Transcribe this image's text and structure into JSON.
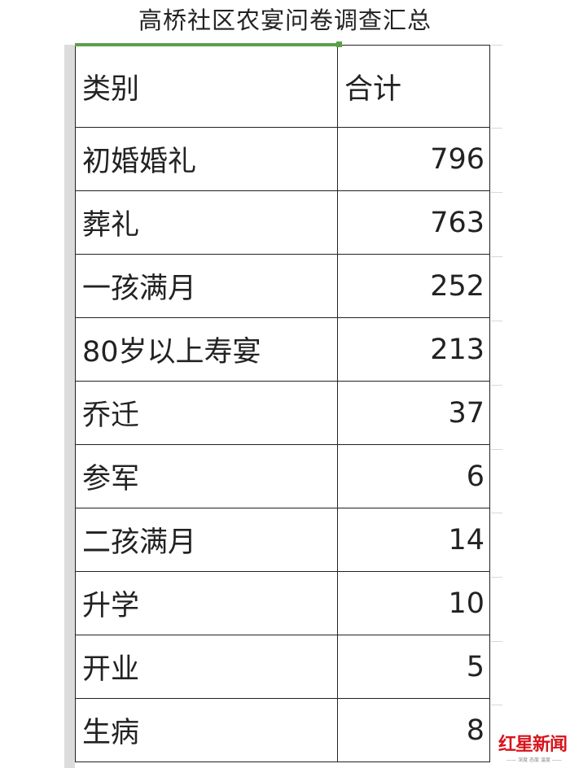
{
  "title": "高桥社区农宴问卷调查汇总",
  "table": {
    "headers": [
      "类别",
      "合计"
    ],
    "rows": [
      {
        "category": "初婚婚礼",
        "total": "796"
      },
      {
        "category": "葬礼",
        "total": "763"
      },
      {
        "category": "一孩满月",
        "total": "252"
      },
      {
        "category": "80岁以上寿宴",
        "total": "213"
      },
      {
        "category": "乔迁",
        "total": "37"
      },
      {
        "category": "参军",
        "total": "6"
      },
      {
        "category": "二孩满月",
        "total": "14"
      },
      {
        "category": "升学",
        "total": "10"
      },
      {
        "category": "开业",
        "total": "5"
      },
      {
        "category": "生病",
        "total": "8"
      }
    ]
  },
  "watermark": {
    "name": "红星新闻",
    "tagline": "—— 深度 态度 温度 ——",
    "color": "#d8141b"
  },
  "selection_color": "#5aa04a"
}
